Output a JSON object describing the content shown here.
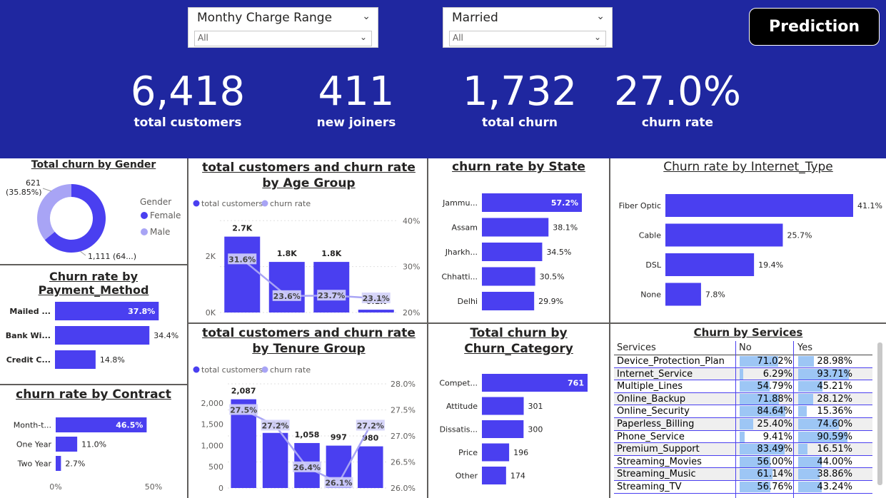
{
  "filters": [
    {
      "title": "Monthy Charge Range",
      "value": "All"
    },
    {
      "title": "Married",
      "value": "All"
    }
  ],
  "prediction_button": "Prediction",
  "kpis": [
    {
      "value": "6,418",
      "label": "total customers"
    },
    {
      "value": "411",
      "label": "new joiners"
    },
    {
      "value": "1,732",
      "label": "total churn"
    },
    {
      "value": "27.0%",
      "label": "churn rate"
    }
  ],
  "colors": {
    "header": "#1f27a0",
    "bar": "#4a3ff0",
    "line": "#a8a4f5",
    "female": "#4a3ff0",
    "male": "#a8a4f5"
  },
  "titles": {
    "gender": "Total churn by Gender",
    "payment": "Churn rate by Payment_Method",
    "contract": "churn rate by Contract",
    "age": "total customers and churn rate by Age Group",
    "tenure": "total customers and churn rate by Tenure Group",
    "state": "churn rate by State",
    "category": "Total churn by Churn_Category",
    "internet": "Churn rate by Internet_Type",
    "services": "Churn by Services"
  },
  "chart_data": [
    {
      "id": "gender",
      "type": "pie",
      "legend_title": "Gender",
      "labels": [
        "Female",
        "Male"
      ],
      "values": [
        1111,
        621
      ],
      "data_labels": [
        "1,111 (64...)",
        "621 (35.85%)"
      ]
    },
    {
      "id": "payment",
      "type": "bar",
      "categories": [
        "Mailed ...",
        "Bank Wi...",
        "Credit C..."
      ],
      "values": [
        37.8,
        34.4,
        14.8
      ],
      "labels": [
        "37.8%",
        "34.4%",
        "14.8%"
      ]
    },
    {
      "id": "contract",
      "type": "bar",
      "categories": [
        "Month-t...",
        "One Year",
        "Two Year"
      ],
      "values": [
        46.5,
        11.0,
        2.7
      ],
      "labels": [
        "46.5%",
        "11.0%",
        "2.7%"
      ],
      "x_ticks": [
        "0%",
        "50%"
      ]
    },
    {
      "id": "age",
      "type": "bar",
      "legend": [
        "total customers",
        "churn rate"
      ],
      "bar_values": [
        2700,
        1800,
        1800,
        100
      ],
      "bar_labels": [
        "2.7K",
        "1.8K",
        "1.8K",
        "0.1K"
      ],
      "line_values": [
        31.6,
        23.6,
        23.7,
        23.1
      ],
      "line_labels": [
        "31.6%",
        "23.6%",
        "23.7%",
        "23.1%"
      ],
      "y_left_ticks": [
        "0K",
        "2K"
      ],
      "y_right_ticks": [
        "20%",
        "30%",
        "40%"
      ]
    },
    {
      "id": "tenure",
      "type": "bar",
      "legend": [
        "total customers",
        "churn rate"
      ],
      "bar_values": [
        2087,
        1296,
        1058,
        997,
        980
      ],
      "bar_labels": [
        "2,087",
        "1,296",
        "1,058",
        "997",
        "980"
      ],
      "line_values": [
        27.5,
        27.2,
        26.4,
        26.1,
        27.2
      ],
      "line_labels": [
        "27.5%",
        "27.2%",
        "26.4%",
        "26.1%",
        "27.2%"
      ],
      "y_left_ticks": [
        "0",
        "500",
        "1,000",
        "1,500",
        "2,000"
      ],
      "y_right_ticks": [
        "26.0%",
        "26.5%",
        "27.0%",
        "27.5%",
        "28.0%"
      ]
    },
    {
      "id": "state",
      "type": "bar",
      "categories": [
        "Jammu...",
        "Assam",
        "Jharkh...",
        "Chhatti...",
        "Delhi"
      ],
      "values": [
        57.2,
        38.1,
        34.5,
        30.5,
        29.9
      ],
      "labels": [
        "57.2%",
        "38.1%",
        "34.5%",
        "30.5%",
        "29.9%"
      ]
    },
    {
      "id": "category",
      "type": "bar",
      "categories": [
        "Compet...",
        "Attitude",
        "Dissatis...",
        "Price",
        "Other"
      ],
      "values": [
        761,
        301,
        300,
        196,
        174
      ],
      "labels": [
        "761",
        "301",
        "300",
        "196",
        "174"
      ]
    },
    {
      "id": "internet",
      "type": "bar",
      "categories": [
        "Fiber Optic",
        "Cable",
        "DSL",
        "None"
      ],
      "values": [
        41.1,
        25.7,
        19.4,
        7.8
      ],
      "labels": [
        "41.1%",
        "25.7%",
        "19.4%",
        "7.8%"
      ]
    },
    {
      "id": "services",
      "type": "table",
      "columns": [
        "Services",
        "No",
        "Yes"
      ],
      "rows": [
        {
          "name": "Device_Protection_Plan",
          "no": 71.02,
          "yes": 28.98,
          "no_label": "71.02%",
          "yes_label": "28.98%"
        },
        {
          "name": "Internet_Service",
          "no": 6.29,
          "yes": 93.71,
          "no_label": "6.29%",
          "yes_label": "93.71%"
        },
        {
          "name": "Multiple_Lines",
          "no": 54.79,
          "yes": 45.21,
          "no_label": "54.79%",
          "yes_label": "45.21%"
        },
        {
          "name": "Online_Backup",
          "no": 71.88,
          "yes": 28.12,
          "no_label": "71.88%",
          "yes_label": "28.12%"
        },
        {
          "name": "Online_Security",
          "no": 84.64,
          "yes": 15.36,
          "no_label": "84.64%",
          "yes_label": "15.36%"
        },
        {
          "name": "Paperless_Billing",
          "no": 25.4,
          "yes": 74.6,
          "no_label": "25.40%",
          "yes_label": "74.60%"
        },
        {
          "name": "Phone_Service",
          "no": 9.41,
          "yes": 90.59,
          "no_label": "9.41%",
          "yes_label": "90.59%"
        },
        {
          "name": "Premium_Support",
          "no": 83.49,
          "yes": 16.51,
          "no_label": "83.49%",
          "yes_label": "16.51%"
        },
        {
          "name": "Streaming_Movies",
          "no": 56.0,
          "yes": 44.0,
          "no_label": "56.00%",
          "yes_label": "44.00%"
        },
        {
          "name": "Streaming_Music",
          "no": 61.14,
          "yes": 38.86,
          "no_label": "61.14%",
          "yes_label": "38.86%"
        },
        {
          "name": "Streaming_TV",
          "no": 56.76,
          "yes": 43.24,
          "no_label": "56.76%",
          "yes_label": "43.24%"
        }
      ]
    }
  ]
}
